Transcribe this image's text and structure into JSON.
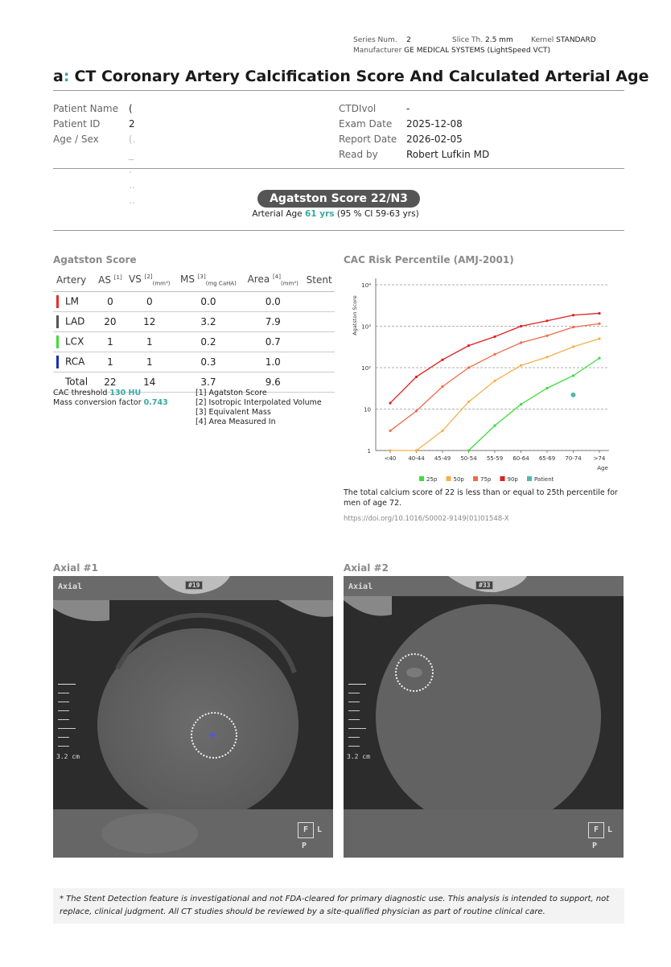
{
  "header": {
    "series_label": "Series Num.",
    "series_value": "2",
    "slice_label": "Slice Th.",
    "slice_value": "2.5 mm",
    "kernel_label": "Kernel",
    "kernel_value": "STANDARD",
    "manufacturer_label": "Manufacturer",
    "manufacturer_value": "GE MEDICAL SYSTEMS (LightSpeed VCT)"
  },
  "logo": {
    "text": "a",
    "dots": ":"
  },
  "title": "CT Coronary Artery Calcification Score And Calculated Arterial Age",
  "patient": {
    "name_label": "Patient Name",
    "name_value": "(",
    "id_label": "Patient ID",
    "id_value": "2",
    "agesex_label": "Age / Sex",
    "agesex_value": "(. _ . .. ..",
    "ctdi_label": "CTDIvol",
    "ctdi_value": "-",
    "exam_label": "Exam Date",
    "exam_value": "2025-12-08",
    "report_label": "Report Date",
    "report_value": "2026-02-05",
    "read_label": "Read by",
    "read_value": "Robert Lufkin MD"
  },
  "summary": {
    "score_label": "Agatston Score 22/N3",
    "arterial_prefix": "Arterial Age",
    "arterial_age": "61 yrs",
    "arterial_ci": "(95 % CI 59-63 yrs)"
  },
  "agatston": {
    "title": "Agatston Score",
    "headers": [
      "Artery",
      "AS",
      "VS",
      "MS",
      "Area",
      "Stent"
    ],
    "header_sups": [
      "",
      "[1]",
      "[2]",
      "[3]",
      "[4]",
      ""
    ],
    "header_subs": [
      "",
      "",
      "(mm³)",
      "(mg CaHA)",
      "(mm²)",
      ""
    ],
    "rows": [
      {
        "artery": "LM",
        "color": "#e03030",
        "as": "0",
        "vs": "0",
        "ms": "0.0",
        "area": "0.0",
        "stent": ""
      },
      {
        "artery": "LAD",
        "color": "#555555",
        "as": "20",
        "vs": "12",
        "ms": "3.2",
        "area": "7.9",
        "stent": ""
      },
      {
        "artery": "LCX",
        "color": "#3ddc3d",
        "as": "1",
        "vs": "1",
        "ms": "0.2",
        "area": "0.7",
        "stent": ""
      },
      {
        "artery": "RCA",
        "color": "#1a2fb0",
        "as": "1",
        "vs": "1",
        "ms": "0.3",
        "area": "1.0",
        "stent": ""
      },
      {
        "artery": "Total",
        "color": "",
        "as": "22",
        "vs": "14",
        "ms": "3.7",
        "area": "9.6",
        "stent": ""
      }
    ],
    "threshold_label": "CAC threshold",
    "threshold_value": "130 HU",
    "mass_label": "Mass conversion factor",
    "mass_value": "0.743",
    "footnotes": [
      "[1] Agatston Score",
      "[2] Isotropic Interpolated Volume",
      "[3] Equivalent Mass",
      "[4] Area Measured In"
    ]
  },
  "chart_data": {
    "type": "line",
    "title": "CAC Risk Percentile (AMJ-2001)",
    "ylabel": "Agatston Score",
    "xlabel": "Age",
    "y_scale": "log",
    "ylim": [
      1,
      10000
    ],
    "y_ticks": [
      "1",
      "10",
      "10²",
      "10³",
      "10⁴"
    ],
    "categories": [
      "<40",
      "40-44",
      "45-49",
      "50-54",
      "55-59",
      "60-64",
      "65-69",
      "70-74",
      ">74"
    ],
    "series": [
      {
        "name": "25p",
        "color": "#3ddc3d",
        "values": [
          null,
          null,
          null,
          1,
          4,
          13,
          32,
          64,
          170
        ]
      },
      {
        "name": "50p",
        "color": "#f5b04a",
        "values": [
          1,
          1,
          3,
          15,
          48,
          113,
          180,
          320,
          500
        ]
      },
      {
        "name": "75p",
        "color": "#f06a4a",
        "values": [
          3,
          9,
          35,
          100,
          210,
          400,
          590,
          950,
          1150
        ]
      },
      {
        "name": "90p",
        "color": "#e02020",
        "values": [
          14,
          60,
          155,
          340,
          560,
          1000,
          1350,
          1850,
          2050
        ]
      }
    ],
    "patient": {
      "name": "Patient",
      "color": "#4fb9b0",
      "x": "70-74",
      "y": 22
    },
    "grid": true,
    "legend": "bottom"
  },
  "chart_text": {
    "summary": "The total calcium score of 22 is less than or equal to 25th percentile for men of age 72.",
    "doi": "https://doi.org/10.1016/S0002-9149(01)01548-X"
  },
  "axial1": {
    "title": "Axial #1",
    "view": "Axial",
    "slice": "#19",
    "scale": "3.2 cm",
    "orient_f": "F",
    "orient_l": "L",
    "orient_p": "P"
  },
  "axial2": {
    "title": "Axial #2",
    "view": "Axial",
    "slice": "#33",
    "scale": "3.2 cm",
    "orient_f": "F",
    "orient_l": "L",
    "orient_p": "P"
  },
  "disclaimer": "* The Stent Detection feature is investigational and not FDA-cleared for primary diagnostic use. This analysis is intended to support, not replace, clinical judgment. All CT studies should be reviewed by a site-qualified physician as part of routine clinical care."
}
